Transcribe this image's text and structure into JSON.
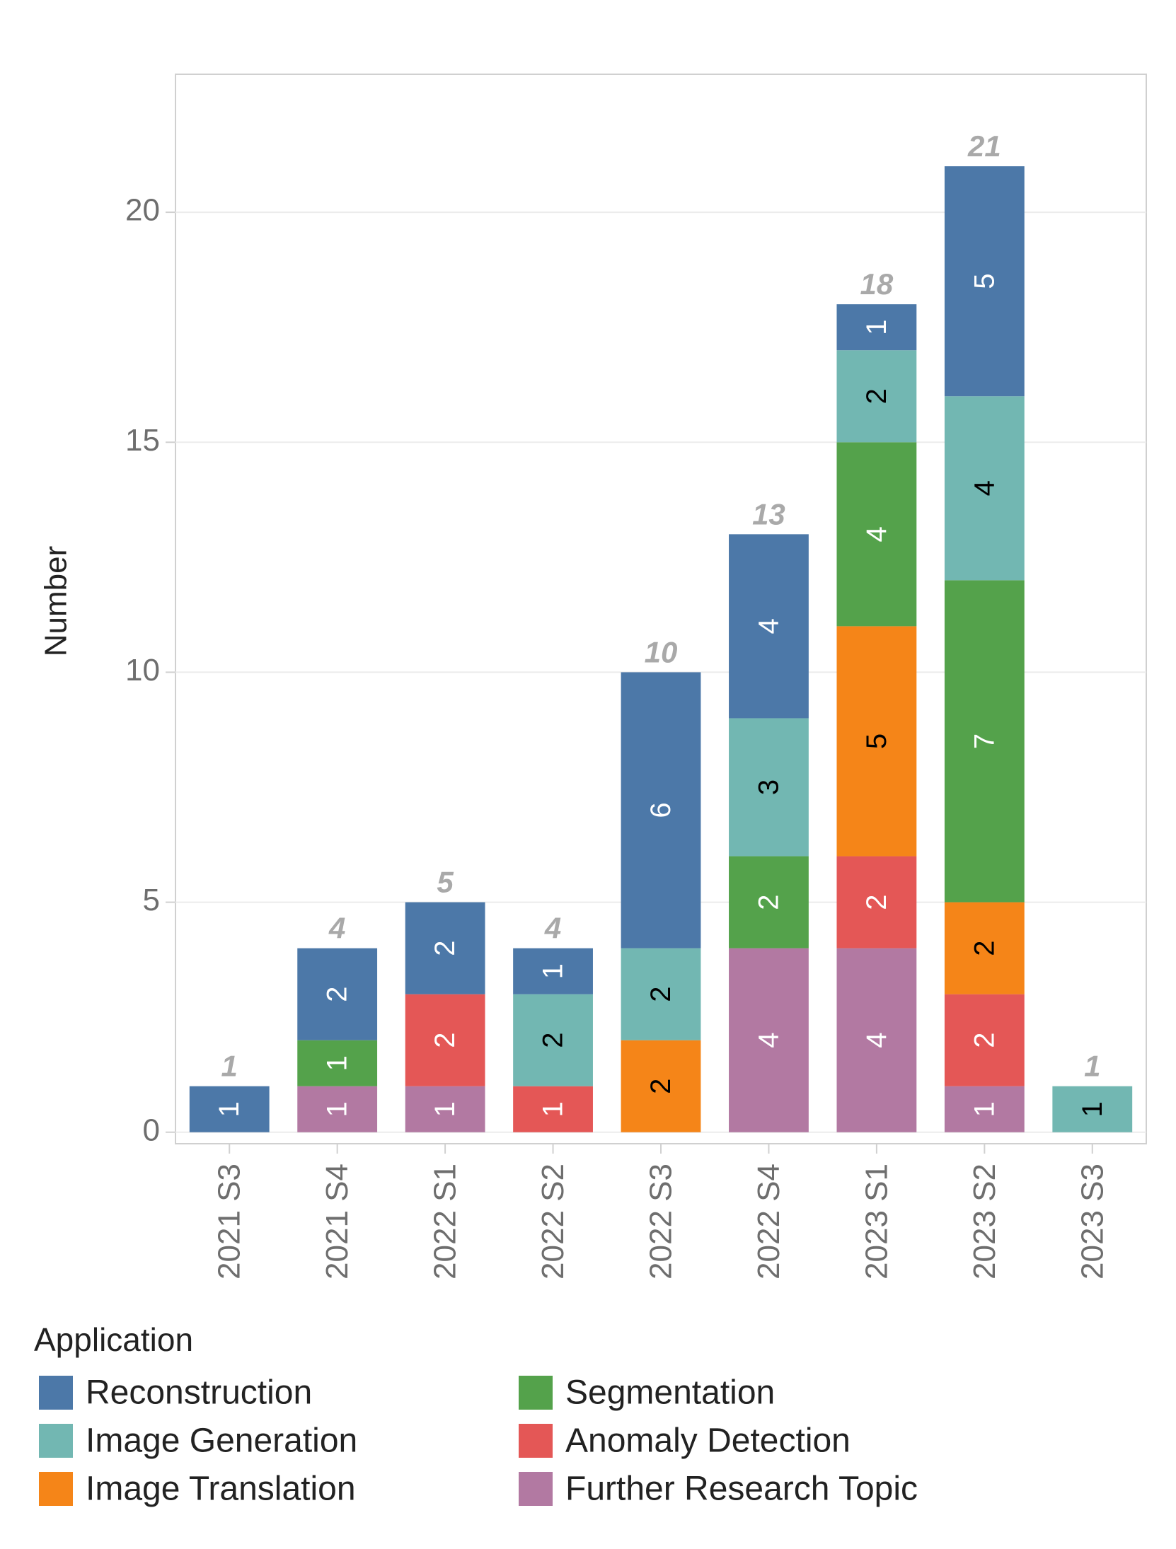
{
  "chart_data": {
    "type": "bar",
    "stacked": true,
    "ylabel": "Number",
    "xlabel": "",
    "ylim": [
      -0.25,
      23
    ],
    "yticks": [
      0,
      5,
      10,
      15,
      20
    ],
    "grid": true,
    "legend": {
      "title": "Application",
      "placement": "bottom"
    },
    "categories": [
      "2021 S3",
      "2021 S4",
      "2022 S1",
      "2022 S2",
      "2022 S3",
      "2022 S4",
      "2023 S1",
      "2023 S2",
      "2023 S3"
    ],
    "totals": [
      1,
      4,
      5,
      4,
      10,
      13,
      18,
      21,
      1
    ],
    "series": [
      {
        "name": "Further Research Topic",
        "color": "#b279a2",
        "label_color": "#ffffff",
        "values": [
          0,
          1,
          1,
          0,
          0,
          4,
          4,
          1,
          0
        ]
      },
      {
        "name": "Anomaly Detection",
        "color": "#e45756",
        "label_color": "#ffffff",
        "values": [
          0,
          0,
          2,
          1,
          0,
          0,
          2,
          2,
          0
        ]
      },
      {
        "name": "Image Translation",
        "color": "#f58518",
        "label_color": "#000000",
        "values": [
          0,
          0,
          0,
          0,
          2,
          0,
          5,
          2,
          0
        ]
      },
      {
        "name": "Segmentation",
        "color": "#54a24b",
        "label_color": "#ffffff",
        "values": [
          0,
          1,
          0,
          0,
          0,
          2,
          4,
          7,
          0
        ]
      },
      {
        "name": "Image Generation",
        "color": "#72b7b2",
        "label_color": "#000000",
        "values": [
          0,
          0,
          0,
          2,
          2,
          3,
          2,
          4,
          1
        ]
      },
      {
        "name": "Reconstruction",
        "color": "#4c78a8",
        "label_color": "#ffffff",
        "values": [
          1,
          2,
          2,
          1,
          6,
          4,
          1,
          5,
          0
        ]
      }
    ],
    "legend_order": [
      "Reconstruction",
      "Segmentation",
      "Image Generation",
      "Anomaly Detection",
      "Image Translation",
      "Further Research Topic"
    ]
  }
}
